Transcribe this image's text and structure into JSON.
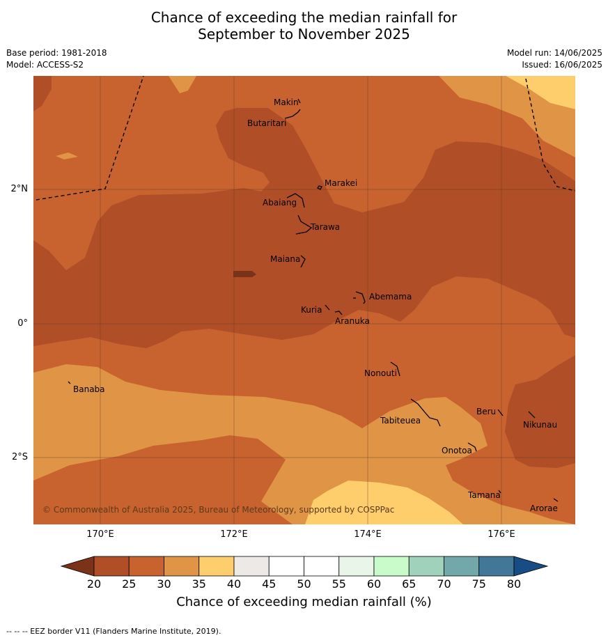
{
  "title_line1": "Chance of exceeding the median rainfall for",
  "title_line2": "September to November 2025",
  "base_period": "Base period: 1981-2018",
  "model": "Model: ACCESS-S2",
  "model_run": "Model run: 14/06/2025",
  "issued": "Issued: 16/06/2025",
  "copyright": "© Commonwealth of Australia 2025, Bureau of Meteorology, supported by COSPPac",
  "lat_ticks": [
    "2°N",
    "0°",
    "2°S"
  ],
  "lon_ticks": [
    "170°E",
    "172°E",
    "174°E",
    "176°E"
  ],
  "places": {
    "makin": "Makin",
    "butaritari": "Butaritari",
    "marakei": "Marakei",
    "abaiang": "Abaiang",
    "tarawa": "Tarawa",
    "maiana": "Maiana",
    "abemama": "Abemama",
    "kuria": "Kuria",
    "aranuka": "Aranuka",
    "nonouti": "Nonouti",
    "banaba": "Banaba",
    "beru": "Beru",
    "tabiteuea": "Tabiteuea",
    "nikunau": "Nikunau",
    "onotoa": "Onotoa",
    "tamana": "Tamana",
    "arorae": "Arorae"
  },
  "colorbar": {
    "ticks": [
      "20",
      "25",
      "30",
      "35",
      "40",
      "45",
      "50",
      "55",
      "60",
      "65",
      "70",
      "75",
      "80"
    ],
    "colors": [
      "#b04e27",
      "#c8622f",
      "#e09445",
      "#fecd6c",
      "#ece9e6",
      "#ffffff",
      "#ffffff",
      "#eaf5ea",
      "#c8fbc9",
      "#9fd1bb",
      "#72a8aa",
      "#427797"
    ],
    "under_color": "#7a3318",
    "over_color": "#184c84",
    "label": "Chance of exceeding median rainfall (%)"
  },
  "footnote": "--  --  -- EEZ border V11 (Flanders Marine Institute, 2019)."
}
